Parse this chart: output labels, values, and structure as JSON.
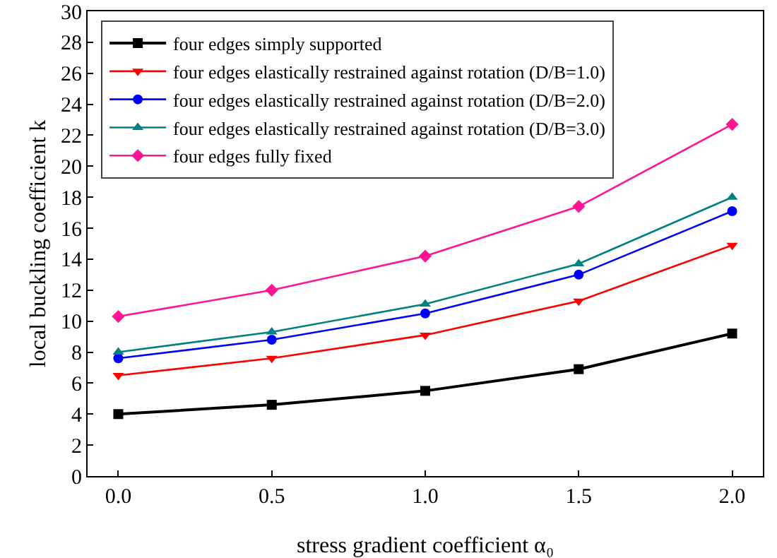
{
  "chart_data": {
    "type": "line",
    "xlabel": "stress gradient coefficient α₀",
    "ylabel": "local buckling coefficient k",
    "x": [
      0,
      0.5,
      1,
      1.5,
      2
    ],
    "series": [
      {
        "name": "four edges simply supported",
        "color": "#000000",
        "marker": "square",
        "values": [
          4.0,
          4.6,
          5.5,
          6.9,
          9.2
        ]
      },
      {
        "name": "four edges elastically restrained against rotation (D/B=1.0)",
        "color": "#ff0000",
        "marker": "triangle-down",
        "values": [
          6.5,
          7.6,
          9.1,
          11.3,
          14.9
        ]
      },
      {
        "name": "four edges elastically restrained against rotation (D/B=2.0)",
        "color": "#0000ff",
        "marker": "circle",
        "values": [
          7.6,
          8.8,
          10.5,
          13.0,
          17.1
        ]
      },
      {
        "name": "four edges elastically restrained against rotation (D/B=3.0)",
        "color": "#008080",
        "marker": "triangle",
        "values": [
          8.0,
          9.3,
          11.1,
          13.7,
          18.0
        ]
      },
      {
        "name": "four edges fully fixed",
        "color": "#ff1493",
        "marker": "diamond",
        "values": [
          10.3,
          12.0,
          14.2,
          17.4,
          22.7
        ]
      }
    ],
    "xlim": [
      -0.1,
      2.1
    ],
    "xticks": [
      {
        "value": 0,
        "label": "0.0"
      },
      {
        "value": 0.5,
        "label": "0.5"
      },
      {
        "value": 1,
        "label": "1.0"
      },
      {
        "value": 1.5,
        "label": "1.5"
      },
      {
        "value": 2,
        "label": "2.0"
      }
    ],
    "ylim": [
      0,
      30
    ],
    "yticks": [
      0,
      2,
      4,
      6,
      8,
      10,
      12,
      14,
      16,
      18,
      20,
      22,
      24,
      26,
      28,
      30
    ],
    "grid": false,
    "legend": "top left",
    "line_style": "solid"
  }
}
